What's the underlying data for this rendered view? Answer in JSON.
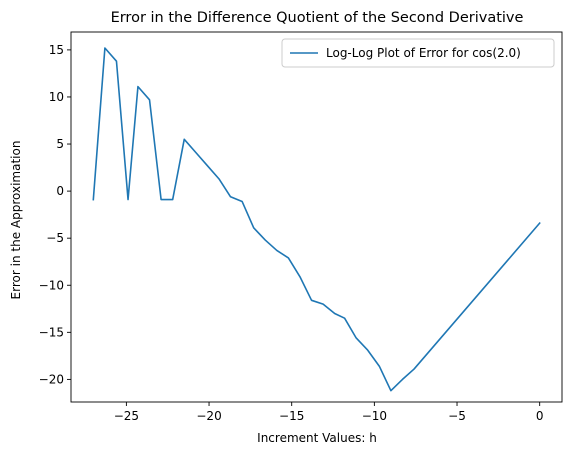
{
  "chart_data": {
    "type": "line",
    "title": "Error in the Difference Quotient of the Second Derivative",
    "xlabel": "Increment Values: h",
    "ylabel": "Error in the Approximation",
    "xlim": [
      -28.35,
      1.35
    ],
    "ylim": [
      -22.4,
      16.9
    ],
    "xticks": [
      -25,
      -20,
      -15,
      -10,
      -5,
      0
    ],
    "yticks": [
      -20,
      -15,
      -10,
      -5,
      0,
      5,
      10,
      15
    ],
    "grid": false,
    "legend_position": "top-right",
    "series": [
      {
        "name": "Log-Log Plot of Error for cos(2.0)",
        "color": "#1f77b4",
        "x": [
          -27,
          -26.3,
          -25.6,
          -24.9,
          -24.3,
          -23.6,
          -22.9,
          -22.2,
          -21.5,
          -20.8,
          -20.1,
          -19.4,
          -18.7,
          -18.0,
          -17.3,
          -16.6,
          -15.9,
          -15.2,
          -14.5,
          -13.8,
          -13.1,
          -12.4,
          -11.8,
          -11.1,
          -10.4,
          -9.7,
          -9.0,
          -8.3,
          -7.6,
          0
        ],
        "y": [
          -0.9,
          15.2,
          13.8,
          -0.9,
          11.1,
          9.7,
          -0.9,
          -0.9,
          5.5,
          4.1,
          2.7,
          1.3,
          -0.6,
          -1.1,
          -3.9,
          -5.2,
          -6.3,
          -7.1,
          -9.1,
          -11.6,
          -12.0,
          -13.0,
          -13.5,
          -15.6,
          -16.9,
          -18.6,
          -21.2,
          -20.0,
          -18.9,
          -3.4
        ]
      }
    ]
  }
}
